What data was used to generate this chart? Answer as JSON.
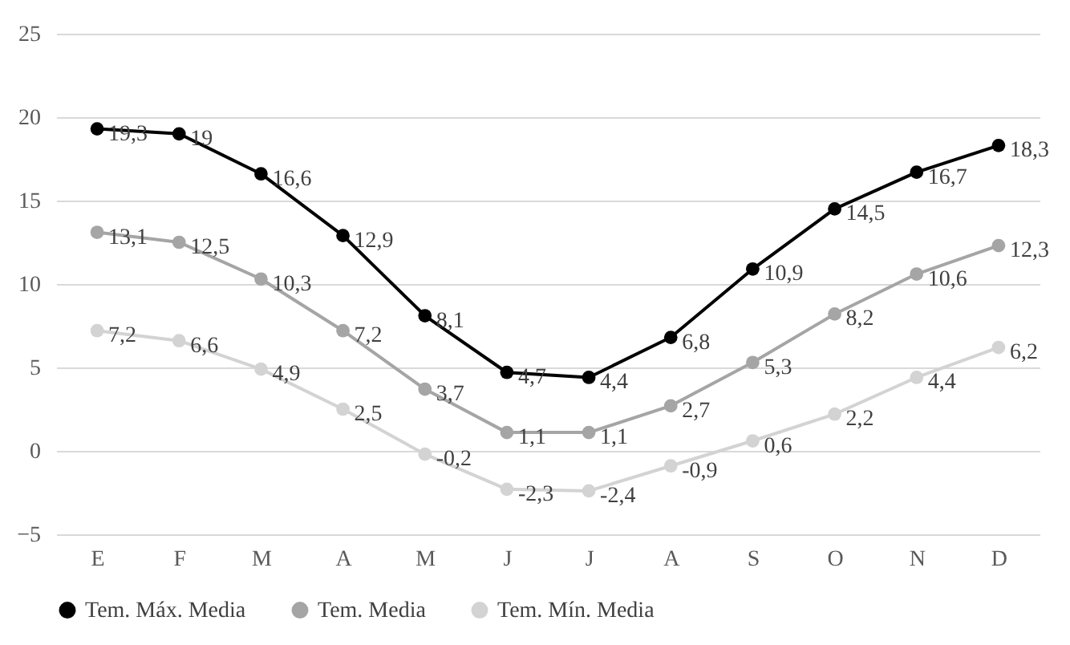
{
  "chart_data": {
    "type": "line",
    "categories": [
      "E",
      "F",
      "M",
      "A",
      "M",
      "J",
      "J",
      "A",
      "S",
      "O",
      "N",
      "D"
    ],
    "series": [
      {
        "name": "Tem. Máx. Media",
        "color": "#000000",
        "values": [
          19.3,
          19,
          16.6,
          12.9,
          8.1,
          4.7,
          4.4,
          6.8,
          10.9,
          14.5,
          16.7,
          18.3
        ],
        "value_labels": [
          "19,3",
          "19",
          "16,6",
          "12,9",
          "8,1",
          "4,7",
          "4,4",
          "6,8",
          "10,9",
          "14,5",
          "16,7",
          "18,3"
        ]
      },
      {
        "name": "Tem. Media",
        "color": "#a5a5a5",
        "values": [
          13.1,
          12.5,
          10.3,
          7.2,
          3.7,
          1.1,
          1.1,
          2.7,
          5.3,
          8.2,
          10.6,
          12.3
        ],
        "value_labels": [
          "13,1",
          "12,5",
          "10,3",
          "7,2",
          "3,7",
          "1,1",
          "1,1",
          "2,7",
          "5,3",
          "8,2",
          "10,6",
          "12,3"
        ]
      },
      {
        "name": "Tem. Mín. Media",
        "color": "#d3d3d3",
        "values": [
          7.2,
          6.6,
          4.9,
          2.5,
          -0.2,
          -2.3,
          -2.4,
          -0.9,
          0.6,
          2.2,
          4.4,
          6.2
        ],
        "value_labels": [
          "7,2",
          "6,6",
          "4,9",
          "2,5",
          "-0,2",
          "-2,3",
          "-2,4",
          "-0,9",
          "0,6",
          "2,2",
          "4,4",
          "6,2"
        ]
      }
    ],
    "ylim": [
      -5,
      25
    ],
    "yticks": [
      -5,
      0,
      5,
      10,
      15,
      20,
      25
    ],
    "grid": "y",
    "legend": "bottom",
    "marker": "circle",
    "line_style": "solid"
  }
}
